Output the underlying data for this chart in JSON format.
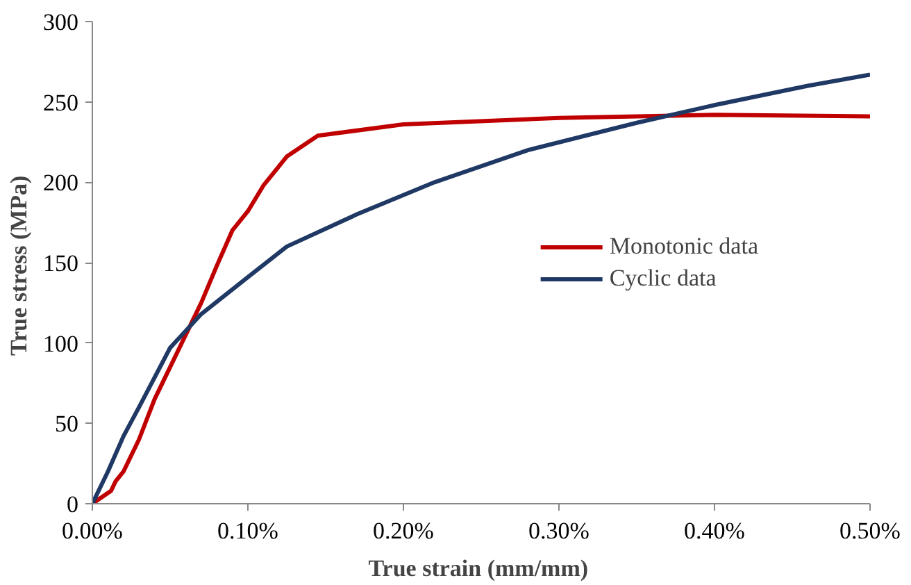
{
  "chart_data": {
    "type": "line",
    "xlabel": "True strain  (mm/mm)",
    "ylabel": "True  stress (MPa)",
    "xlim": [
      0,
      0.5
    ],
    "ylim": [
      0,
      300
    ],
    "xticks": [
      {
        "value": 0,
        "label": "0.00%"
      },
      {
        "value": 0.1,
        "label": "0.10%"
      },
      {
        "value": 0.2,
        "label": "0.20%"
      },
      {
        "value": 0.3,
        "label": "0.30%"
      },
      {
        "value": 0.4,
        "label": "0.40%"
      },
      {
        "value": 0.5,
        "label": "0.50%"
      }
    ],
    "yticks": [
      0,
      50,
      100,
      150,
      200,
      250,
      300
    ],
    "grid": false,
    "legend": "right",
    "marker": "none",
    "line_style": "solid",
    "series": [
      {
        "name": "Monotonic data",
        "color": "#c00000",
        "x": [
          0,
          0.012,
          0.015,
          0.02,
          0.03,
          0.04,
          0.05,
          0.06,
          0.07,
          0.08,
          0.09,
          0.1,
          0.11,
          0.125,
          0.145,
          0.2,
          0.3,
          0.4,
          0.5
        ],
        "values": [
          0,
          8,
          14,
          20,
          40,
          65,
          85,
          105,
          125,
          148,
          170,
          182,
          198,
          216,
          229,
          236,
          240,
          242,
          241
        ]
      },
      {
        "name": "Cyclic data",
        "color": "#1f3864",
        "x": [
          0,
          0.01,
          0.02,
          0.03,
          0.05,
          0.07,
          0.1,
          0.125,
          0.17,
          0.22,
          0.28,
          0.35,
          0.4,
          0.46,
          0.5
        ],
        "values": [
          0,
          20,
          42,
          60,
          97,
          118,
          141,
          160,
          180,
          200,
          220,
          237,
          248,
          260,
          267
        ]
      }
    ]
  }
}
